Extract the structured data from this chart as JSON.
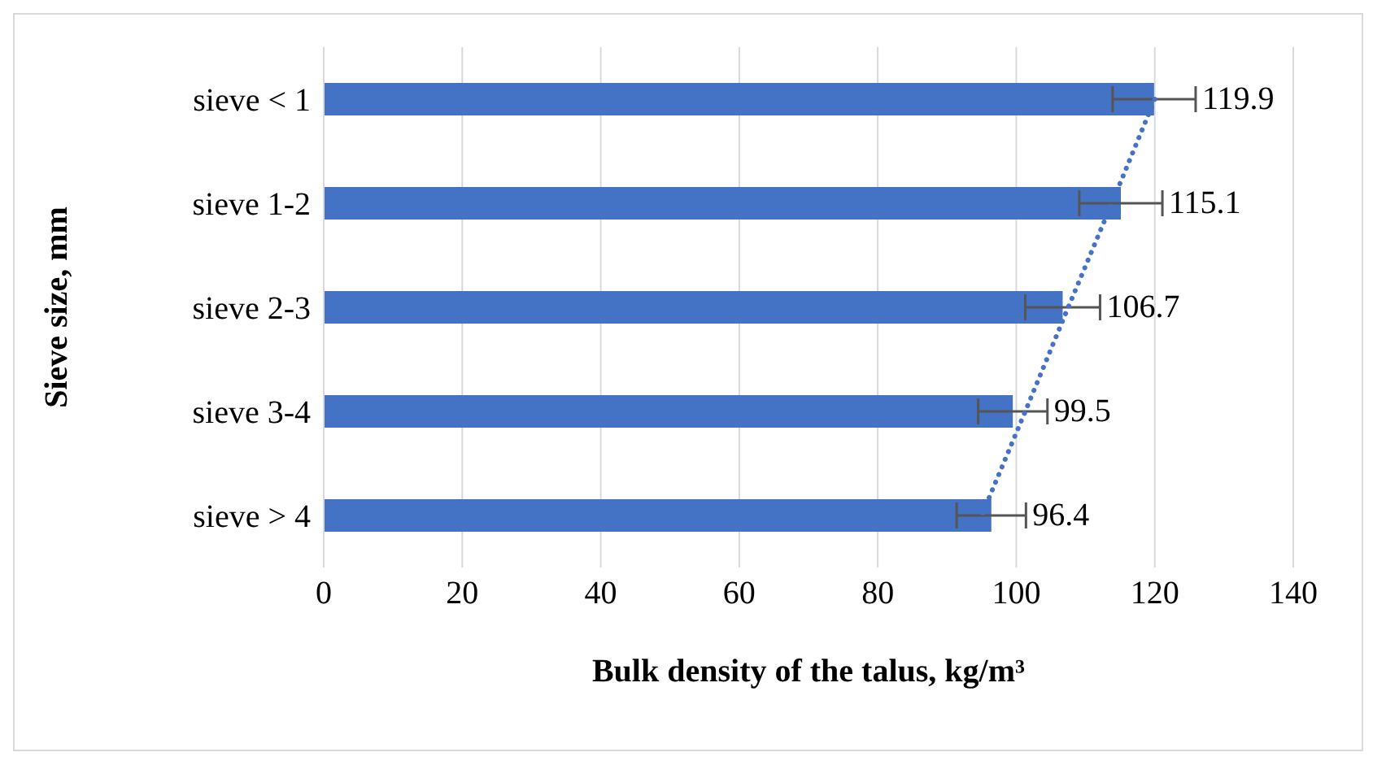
{
  "chart_data": {
    "type": "bar",
    "orientation": "horizontal",
    "xlabel": "Bulk density of the talus, kg/m³",
    "ylabel": "Sieve size, mm",
    "categories": [
      "sieve < 1",
      "sieve 1-2",
      "sieve 2-3",
      "sieve 3-4",
      "sieve > 4"
    ],
    "series": [
      {
        "color": "#4472c4",
        "values": [
          119.9,
          115.1,
          106.7,
          99.5,
          96.4
        ],
        "errors": [
          6,
          6,
          5.4,
          5,
          5
        ],
        "value_labels": [
          "119.9",
          "115.1",
          "106.7",
          "99.5",
          "96.4"
        ]
      },
      {
        "type": "line",
        "color": "#4472c4",
        "line_style": "dotted",
        "marker": "none",
        "values": [
          120,
          113.8,
          107.5,
          101.3,
          95
        ]
      }
    ],
    "xlim": [
      0,
      140
    ],
    "xticks": [
      0,
      20,
      40,
      60,
      80,
      100,
      120,
      140
    ],
    "grid": "x"
  }
}
